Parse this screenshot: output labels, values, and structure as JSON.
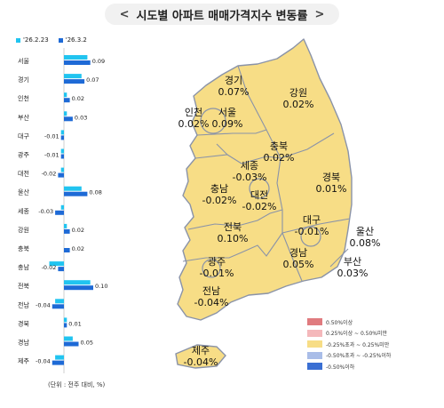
{
  "title": "시도별 아파트 매매가격지수 변동률",
  "note": "(단위 : 전주 대비, %)",
  "colors": {
    "prev": "#21c4f0",
    "curr": "#1e6ad6",
    "map_base": "#f7dd86",
    "map_border": "#8a93a8"
  },
  "chart_data": {
    "type": "bar",
    "orientation": "horizontal",
    "categories": [
      "서울",
      "경기",
      "인천",
      "부산",
      "대구",
      "광주",
      "대전",
      "울산",
      "세종",
      "강원",
      "충북",
      "충남",
      "전북",
      "전남",
      "경북",
      "경남",
      "제주"
    ],
    "series": [
      {
        "name": "'26.2.23",
        "values": [
          0.08,
          0.06,
          0.01,
          0.01,
          -0.01,
          -0.01,
          -0.01,
          0.06,
          -0.01,
          0.01,
          0.0,
          -0.05,
          0.09,
          -0.03,
          0.01,
          0.03,
          -0.03
        ]
      },
      {
        "name": "'26.3.2",
        "values": [
          0.09,
          0.07,
          0.02,
          0.03,
          -0.01,
          -0.01,
          -0.02,
          0.08,
          -0.03,
          0.02,
          0.02,
          -0.02,
          0.1,
          -0.04,
          0.01,
          0.05,
          -0.04
        ]
      }
    ],
    "value_labels": [
      "0.09",
      "0.07",
      "0.02",
      "0.03",
      "-0.01",
      "-0.01",
      "-0.02",
      "0.08",
      "-0.03",
      "0.02",
      "0.02",
      "-0.02",
      "0.10",
      "-0.04",
      "0.01",
      "0.05",
      "-0.04"
    ]
  },
  "map": {
    "regions": [
      {
        "name": "경기",
        "value": "0.07%"
      },
      {
        "name": "강원",
        "value": "0.02%"
      },
      {
        "name": "인천",
        "value": "0.02%"
      },
      {
        "name": "서울",
        "value": "0.09%"
      },
      {
        "name": "충북",
        "value": "0.02%"
      },
      {
        "name": "세종",
        "value": "-0.03%"
      },
      {
        "name": "경북",
        "value": "0.01%"
      },
      {
        "name": "충남",
        "value": "-0.02%"
      },
      {
        "name": "대전",
        "value": "-0.02%"
      },
      {
        "name": "대구",
        "value": "-0.01%"
      },
      {
        "name": "울산",
        "value": "0.08%"
      },
      {
        "name": "전북",
        "value": "0.10%"
      },
      {
        "name": "경남",
        "value": "0.05%"
      },
      {
        "name": "부산",
        "value": "0.03%"
      },
      {
        "name": "광주",
        "value": "-0.01%"
      },
      {
        "name": "전남",
        "value": "-0.04%"
      },
      {
        "name": "제주",
        "value": "-0.04%"
      }
    ],
    "legend": [
      {
        "label": "0.50%이상",
        "color": "#e07b7f"
      },
      {
        "label": "0.25%이상 ~ 0.50%미만",
        "color": "#f4b8bb"
      },
      {
        "label": "-0.25%초과 ~ 0.25%미만",
        "color": "#f7dd86"
      },
      {
        "label": "-0.50%초과 ~ -0.25%이하",
        "color": "#a9bde8"
      },
      {
        "label": "-0.50%이하",
        "color": "#3a6fd3"
      }
    ]
  }
}
